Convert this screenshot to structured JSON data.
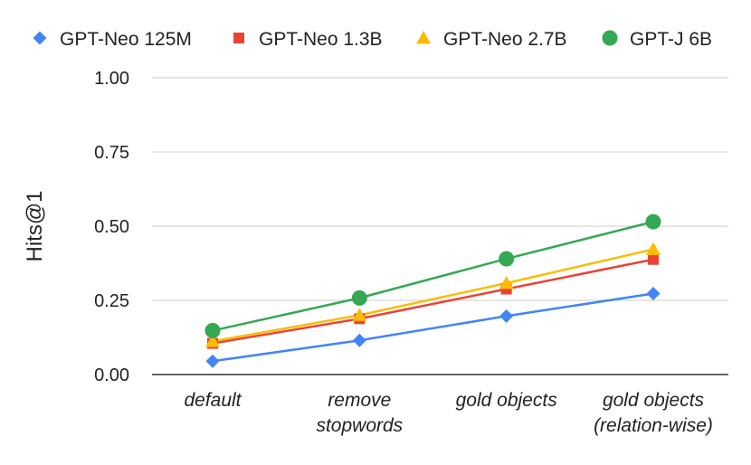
{
  "chart_data": {
    "type": "line",
    "categories": [
      [
        "default"
      ],
      [
        "remove",
        "stopwords"
      ],
      [
        "gold objects"
      ],
      [
        "gold objects",
        "(relation-wise)"
      ]
    ],
    "ylabel": "Hits@1",
    "ylim": [
      0,
      1
    ],
    "yticks": [
      "0.00",
      "0.25",
      "0.50",
      "0.75",
      "1.00"
    ],
    "grid": true,
    "legend_position": "top",
    "series": [
      {
        "name": "GPT-Neo 125M",
        "color": "#4285f4",
        "marker": "diamond",
        "values": [
          0.045,
          0.115,
          0.197,
          0.273
        ]
      },
      {
        "name": "GPT-Neo 1.3B",
        "color": "#ea4335",
        "marker": "square",
        "values": [
          0.105,
          0.188,
          0.288,
          0.388
        ]
      },
      {
        "name": "GPT-Neo 2.7B",
        "color": "#fbbc04",
        "marker": "triangle",
        "values": [
          0.112,
          0.2,
          0.308,
          0.422
        ]
      },
      {
        "name": "GPT-J 6B",
        "color": "#34a853",
        "marker": "circle",
        "values": [
          0.148,
          0.258,
          0.39,
          0.515
        ]
      }
    ]
  }
}
